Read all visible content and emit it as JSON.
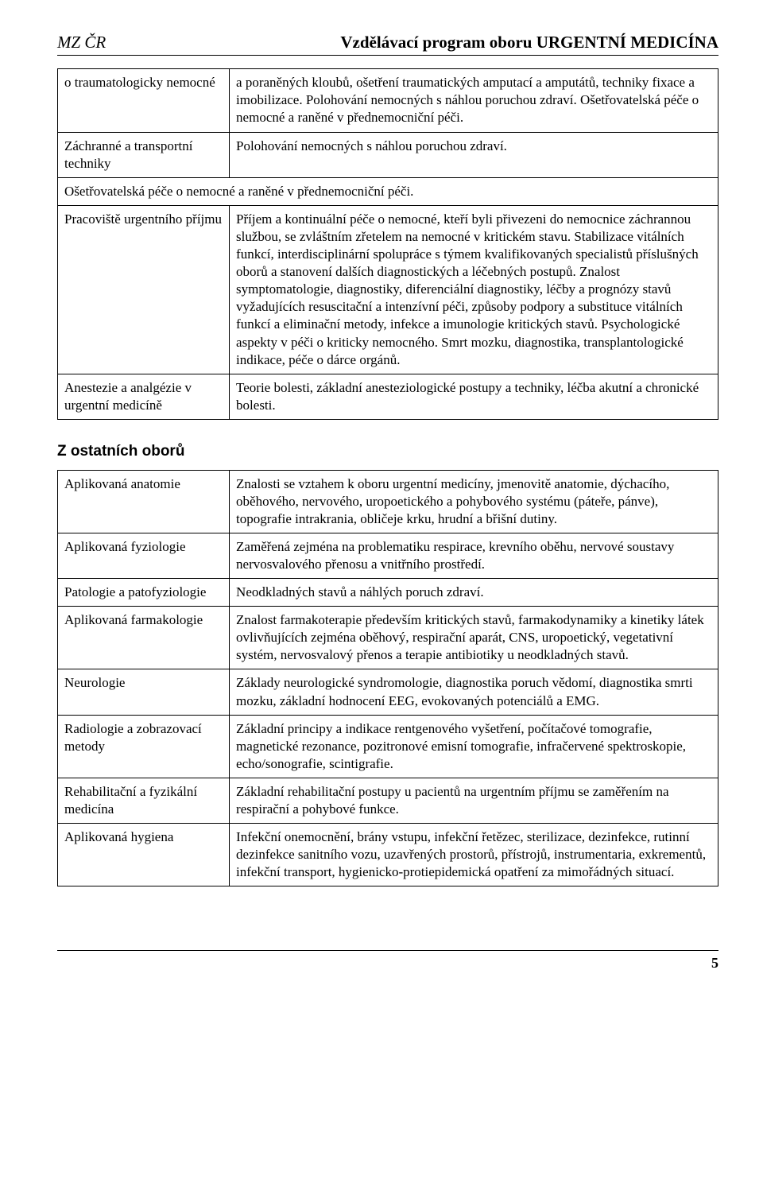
{
  "header": {
    "left": "MZ ČR",
    "right": "Vzdělávací program oboru URGENTNÍ MEDICÍNA"
  },
  "table1": {
    "rows": [
      {
        "label": "o traumatologicky nemocné",
        "text": "a poraněných kloubů, ošetření traumatických amputací a amputátů, techniky fixace a imobilizace. Polohování nemocných s náhlou poruchou zdraví. Ošetřovatelská péče o nemocné a raněné v přednemocniční péči."
      },
      {
        "label": "Záchranné a transportní techniky",
        "text": "Polohování nemocných s náhlou poruchou zdraví."
      },
      {
        "full": "Ošetřovatelská péče o nemocné a raněné v přednemocniční péči."
      },
      {
        "label": "Pracoviště urgentního příjmu",
        "text": "Příjem a kontinuální péče o nemocné, kteří byli přivezeni do nemocnice záchrannou službou, se zvláštním zřetelem na nemocné v kritickém stavu. Stabilizace vitálních funkcí, interdisciplinární spolupráce s týmem kvalifikovaných specialistů příslušných oborů a stanovení dalších diagnostických a léčebných postupů. Znalost symptomatologie, diagnostiky, diferenciální diagnostiky, léčby a prognózy stavů vyžadujících resuscitační a intenzívní péči, způsoby podpory a substituce vitálních funkcí a eliminační metody, infekce a imunologie kritických stavů. Psychologické aspekty v péči o kriticky nemocného. Smrt mozku, diagnostika, transplantologické indikace, péče o dárce orgánů."
      },
      {
        "label": "Anestezie a analgézie v urgentní medicíně",
        "text": "Teorie bolesti, základní anesteziologické postupy a techniky, léčba akutní a chronické bolesti."
      }
    ]
  },
  "section2_heading": "Z ostatních oborů",
  "table2": {
    "rows": [
      {
        "label": "Aplikovaná anatomie",
        "text": "Znalosti se vztahem k oboru urgentní medicíny, jmenovitě anatomie, dýchacího, oběhového, nervového, uropoetického a pohybového systému (páteře, pánve), topografie intrakrania, obličeje krku, hrudní a břišní dutiny."
      },
      {
        "label": "Aplikovaná fyziologie",
        "text": "Zaměřená zejména na problematiku respirace, krevního oběhu, nervové soustavy nervosvalového přenosu a vnitřního prostředí."
      },
      {
        "label": "Patologie a patofyziologie",
        "text": "Neodkladných stavů a náhlých poruch zdraví."
      },
      {
        "label": "Aplikovaná farmakologie",
        "text": "Znalost farmakoterapie především kritických stavů, farmakodynamiky a kinetiky látek ovlivňujících zejména oběhový, respirační aparát, CNS, uropoetický, vegetativní systém, nervosvalový přenos a terapie antibiotiky u neodkladných stavů."
      },
      {
        "label": "Neurologie",
        "text": "Základy neurologické syndromologie, diagnostika poruch vědomí, diagnostika smrti mozku, základní hodnocení EEG, evokovaných potenciálů a EMG."
      },
      {
        "label": "Radiologie a zobrazovací metody",
        "text": "Základní principy a indikace rentgenového vyšetření, počítačové tomografie, magnetické rezonance, pozitronové emisní tomografie, infračervené spektroskopie, echo/sonografie, scintigrafie."
      },
      {
        "label": "Rehabilitační a fyzikální medicína",
        "text": "Základní rehabilitační postupy u pacientů na urgentním příjmu se zaměřením na respirační a pohybové funkce."
      },
      {
        "label": "Aplikovaná hygiena",
        "text": "Infekční onemocnění, brány vstupu, infekční řetězec, sterilizace, dezinfekce, rutinní dezinfekce sanitního vozu, uzavřených prostorů, přístrojů, instrumentaria, exkrementů, infekční transport, hygienicko-protiepidemická opatření za mimořádných situací."
      }
    ]
  },
  "footer": {
    "page_number": "5"
  }
}
